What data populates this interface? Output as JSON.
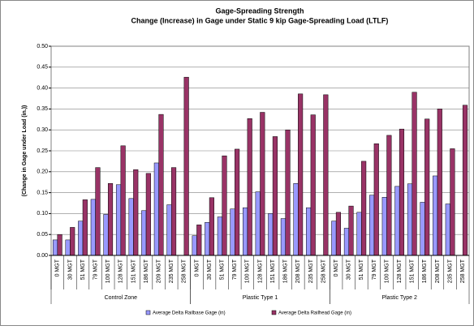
{
  "chart_data": {
    "type": "bar",
    "title": "Gage-Spreading Strength",
    "subtitle": "Change (Increase) in Gage under Static 9 kip Gage-Spreading Load (LTLF)",
    "y_label": "(Change in Gage under Load (in.))",
    "groups": [
      "Control Zone",
      "Plastic Type 1",
      "Plastic Type 2"
    ],
    "categories": [
      "0 MGT",
      "30 MGT",
      "51 MGT",
      "79 MGT",
      "100 MGT",
      "128 MGT",
      "151 MGT",
      "186 MGT",
      "209 MGT",
      "235 MGT",
      "258 MGT",
      "0 MGT",
      "30 MGT",
      "51 MGT",
      "79 MGT",
      "100 MGT",
      "128 MGT",
      "151 MGT",
      "186 MGT",
      "208 MGT",
      "235 MGT",
      "258 MGT",
      "0 MGT",
      "30 MGT",
      "51 MGT",
      "79 MGT",
      "100 MGT",
      "128 MGT",
      "151 MGT",
      "186 MGT",
      "208 MGT",
      "235 MGT",
      "258 MGT"
    ],
    "series": [
      {
        "name": "Average Delta Railbase Gage (in)",
        "color": "#9999ff",
        "values": [
          0.037,
          0.037,
          0.082,
          0.134,
          0.098,
          0.169,
          0.136,
          0.107,
          0.221,
          0.121,
          null,
          0.047,
          0.079,
          0.092,
          0.111,
          0.114,
          0.152,
          0.1,
          0.088,
          0.172,
          0.114,
          null,
          0.082,
          0.065,
          0.103,
          0.144,
          0.139,
          0.165,
          0.171,
          0.127,
          0.19,
          0.123,
          null
        ]
      },
      {
        "name": "Average Delta Railhead Gage (in)",
        "color": "#993366",
        "values": [
          0.05,
          0.067,
          0.133,
          0.21,
          0.172,
          0.262,
          0.205,
          0.196,
          0.337,
          0.21,
          0.426,
          0.073,
          0.138,
          0.238,
          0.254,
          0.327,
          0.342,
          0.284,
          0.3,
          0.386,
          0.336,
          0.384,
          0.103,
          0.118,
          0.225,
          0.267,
          0.287,
          0.302,
          0.39,
          0.326,
          0.35,
          0.255,
          0.359
        ]
      }
    ],
    "ylim": [
      0,
      0.5
    ],
    "yticks": [
      {
        "value": 0,
        "label": "0.00"
      },
      0.05,
      {
        "value": 0.1,
        "label": "0.10"
      },
      0.15,
      {
        "value": 0.2,
        "label": "0.20"
      },
      0.25,
      {
        "value": 0.3,
        "label": "0.30"
      },
      0.35,
      {
        "value": 0.4,
        "label": "0.40"
      },
      0.45,
      {
        "value": 0.5,
        "label": "0.50"
      }
    ],
    "grid": true,
    "legend": "bottom"
  }
}
